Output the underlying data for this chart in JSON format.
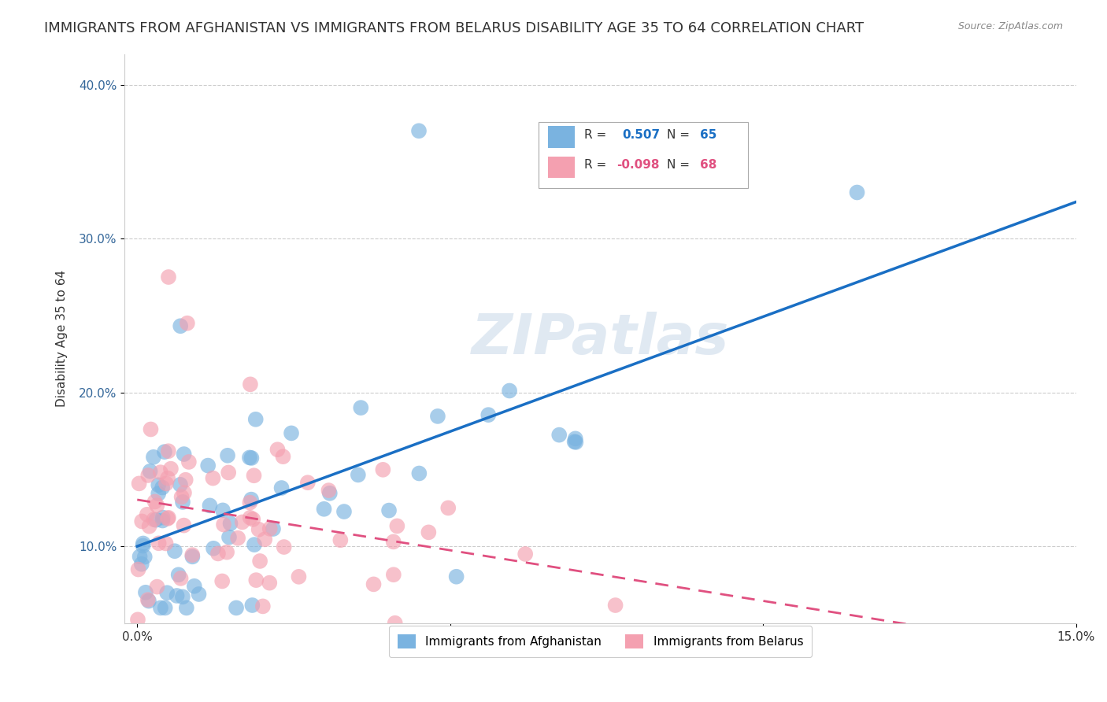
{
  "title": "IMMIGRANTS FROM AFGHANISTAN VS IMMIGRANTS FROM BELARUS DISABILITY AGE 35 TO 64 CORRELATION CHART",
  "source": "Source: ZipAtlas.com",
  "xlabel": "",
  "ylabel": "Disability Age 35 to 64",
  "xlim": [
    0.0,
    0.15
  ],
  "ylim": [
    0.05,
    0.42
  ],
  "xticks": [
    0.0,
    0.05,
    0.1,
    0.15
  ],
  "xticklabels": [
    "0.0%",
    "5.0%",
    "10.0%",
    "15.0%"
  ],
  "yticks": [
    0.1,
    0.2,
    0.3,
    0.4
  ],
  "yticklabels": [
    "10.0%",
    "20.0%",
    "30.0%",
    "40.0%"
  ],
  "afghanistan_color": "#7ab3e0",
  "belarus_color": "#f4a0b0",
  "afghanistan_R": 0.507,
  "afghanistan_N": 65,
  "belarus_R": -0.098,
  "belarus_N": 68,
  "afghanistan_line_color": "#1a6fc4",
  "belarus_line_color": "#e05080",
  "watermark": "ZIPatlas",
  "legend_label_1": "Immigrants from Afghanistan",
  "legend_label_2": "Immigrants from Belarus",
  "background_color": "#ffffff",
  "grid_color": "#cccccc",
  "title_fontsize": 13,
  "axis_fontsize": 11,
  "tick_fontsize": 11,
  "legend_R_color": "#1a6fc4",
  "legend_N_color": "#1a6fc4"
}
